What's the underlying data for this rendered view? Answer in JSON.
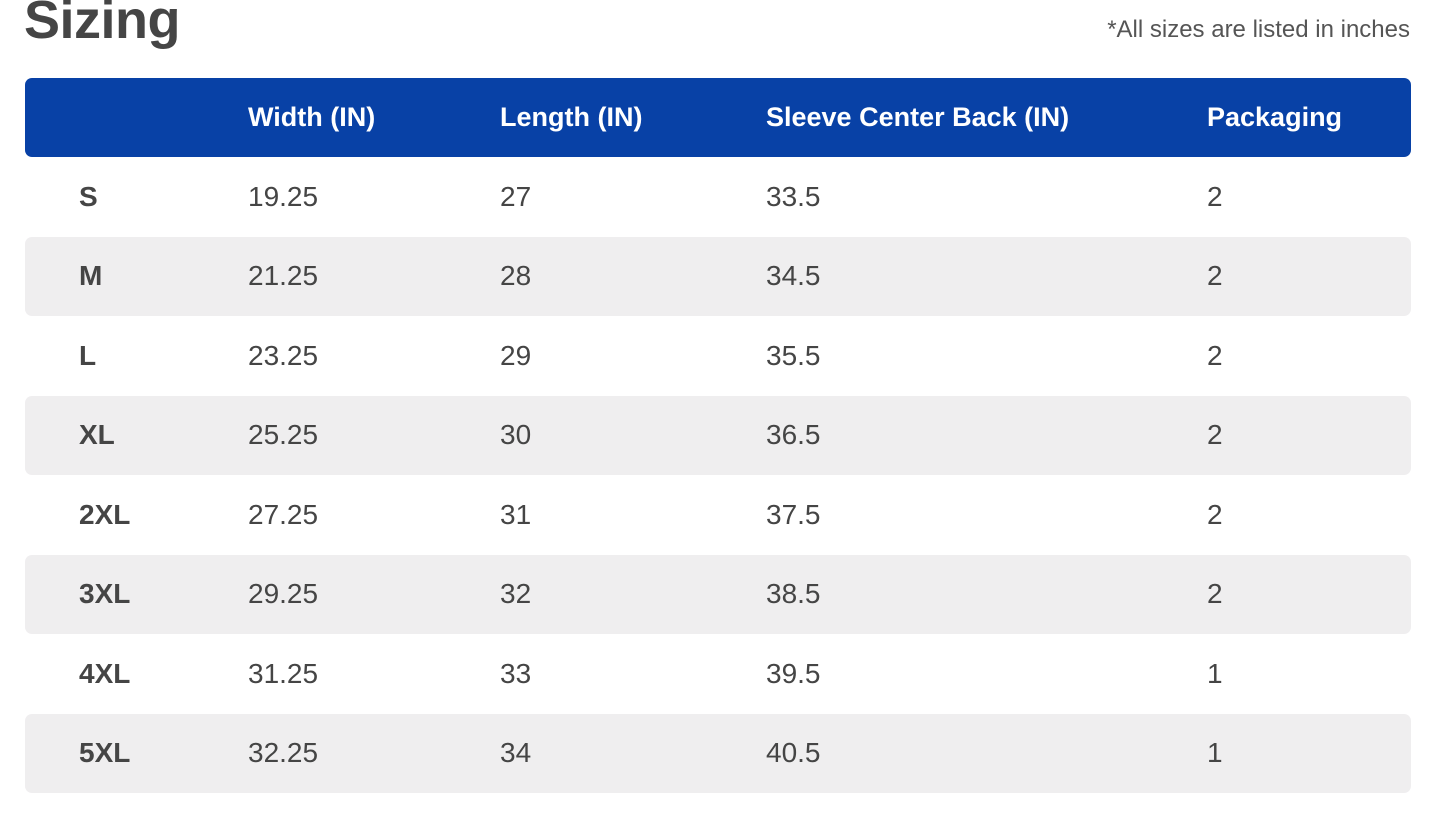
{
  "title": "Sizing",
  "units_note": "*All sizes are listed in inches",
  "colors": {
    "header_background": "#0841a6",
    "alt_row_background": "#efeeef",
    "text": "#454545"
  },
  "table": {
    "headers": [
      "",
      "Width (IN)",
      "Length (IN)",
      "Sleeve Center Back (IN)",
      "Packaging"
    ],
    "rows": [
      [
        "S",
        "19.25",
        "27",
        "33.5",
        "2"
      ],
      [
        "M",
        "21.25",
        "28",
        "34.5",
        "2"
      ],
      [
        "L",
        "23.25",
        "29",
        "35.5",
        "2"
      ],
      [
        "XL",
        "25.25",
        "30",
        "36.5",
        "2"
      ],
      [
        "2XL",
        "27.25",
        "31",
        "37.5",
        "2"
      ],
      [
        "3XL",
        "29.25",
        "32",
        "38.5",
        "2"
      ],
      [
        "4XL",
        "31.25",
        "33",
        "39.5",
        "1"
      ],
      [
        "5XL",
        "32.25",
        "34",
        "40.5",
        "1"
      ]
    ]
  }
}
